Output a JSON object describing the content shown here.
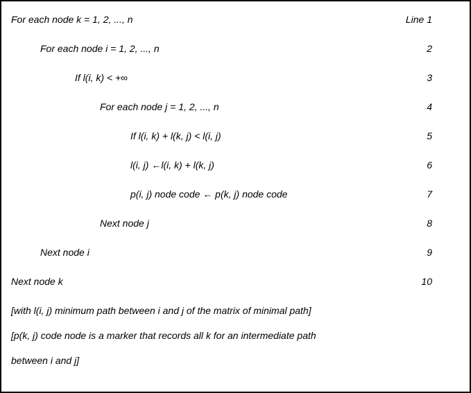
{
  "lines": [
    {
      "text": "For each node k = 1, 2, ..., n",
      "label": "Line 1"
    },
    {
      "text": "For each node i = 1, 2, ..., n",
      "label": "2"
    },
    {
      "text_pre": "If l(i, k) < +",
      "text_post": "",
      "infinity": true,
      "label": "3"
    },
    {
      "text": "For each node j = 1, 2, ..., n",
      "label": "4"
    },
    {
      "text": "If l(i, k) + l(k, j) < l(i, j)",
      "label": "5"
    },
    {
      "text_a": "l(i, j) ",
      "text_b": "l(i, k) + l(k, j)",
      "arrow": true,
      "label": "6"
    },
    {
      "text_a": "p(i, j) node code ",
      "text_b": " p(k, j) node code",
      "arrow": true,
      "label": "7"
    },
    {
      "text": "Next node j",
      "label": "8"
    },
    {
      "text": "Next node i",
      "label": "9"
    },
    {
      "text": "Next node k",
      "label": "10"
    }
  ],
  "footer": {
    "l1": "[with l(i, j) minimum path between i and j of the matrix of minimal path]",
    "l2": " [p(k, j) code node is a marker that records all k for an intermediate path",
    "l3": "between i and j]"
  },
  "style": {
    "border_color": "#000000",
    "background": "#ffffff",
    "font_size_pt": 10.5,
    "arrow_glyph": "←",
    "infinity_glyph": "∞"
  }
}
